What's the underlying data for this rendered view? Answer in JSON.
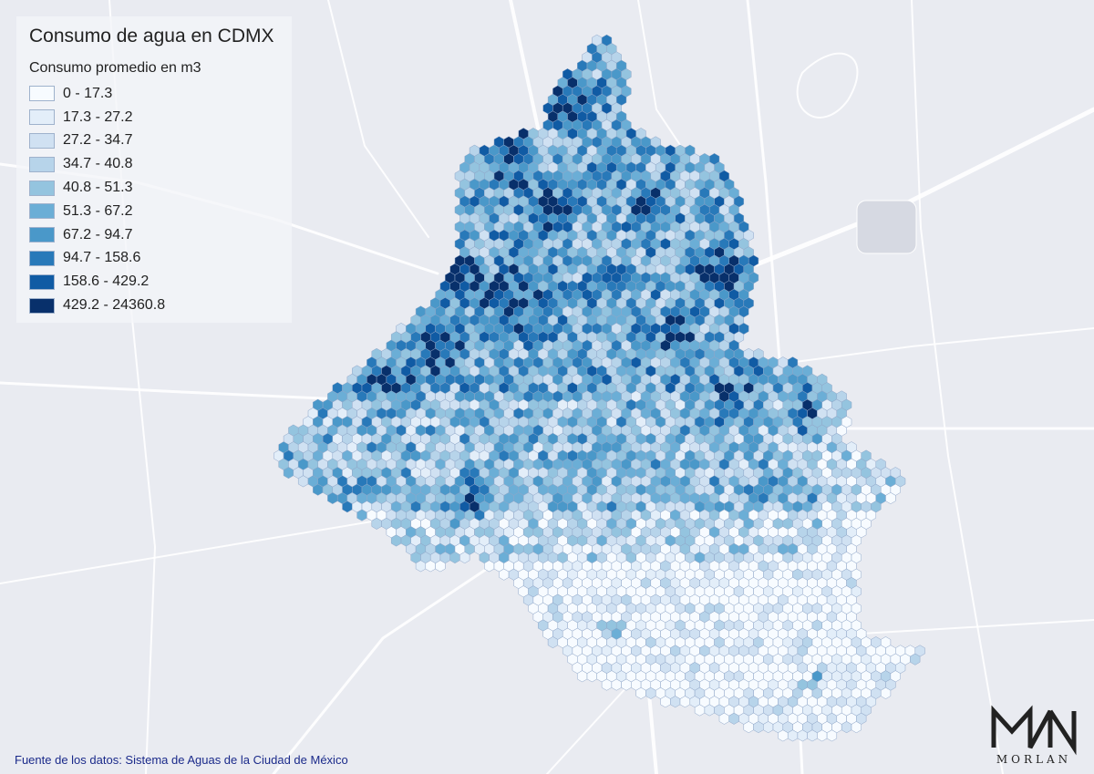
{
  "map": {
    "title": "Consumo de agua en CDMX",
    "legend_title": "Consumo promedio en m3",
    "legend": [
      {
        "label": "0 - 17.3",
        "color": "#f7fbff"
      },
      {
        "label": "17.3 - 27.2",
        "color": "#e3eef9"
      },
      {
        "label": "27.2 - 34.7",
        "color": "#d0e1f2"
      },
      {
        "label": "34.7 - 40.8",
        "color": "#b7d4ea"
      },
      {
        "label": "40.8 - 51.3",
        "color": "#94c4df"
      },
      {
        "label": "51.3 - 67.2",
        "color": "#6baed6"
      },
      {
        "label": "67.2 - 94.7",
        "color": "#4a98c9"
      },
      {
        "label": "94.7 - 158.6",
        "color": "#2879b9"
      },
      {
        "label": "158.6 - 429.2",
        "color": "#105ba4"
      },
      {
        "label": "429.2 - 24360.8",
        "color": "#08306b"
      }
    ],
    "source": "Fuente de los datos: Sistema de Aguas de la Ciudad de México",
    "brand": "MORLAN",
    "colors": {
      "background": "#e9ebf1",
      "road": "#ffffff",
      "hex_border": "#8fa6c8"
    }
  }
}
